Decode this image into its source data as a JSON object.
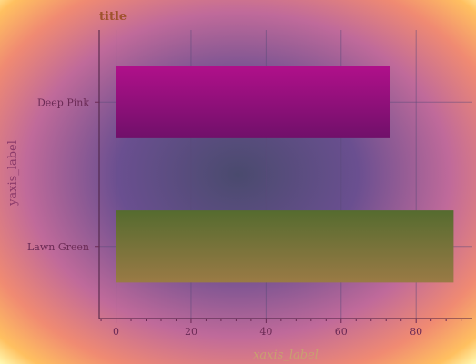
{
  "chart_data": {
    "type": "bar",
    "orientation": "horizontal",
    "title": "title",
    "xlabel": "xaxis_label",
    "ylabel": "yaxis_label",
    "categories": [
      "Lawn Green",
      "Deep Pink"
    ],
    "values": [
      90,
      73
    ],
    "bar_colors": [
      "#7a8a3a",
      "#a0107a"
    ],
    "xlim": [
      -4.5,
      95
    ],
    "xticks": [
      0,
      20,
      40,
      60,
      80
    ],
    "grid": true,
    "colors": {
      "title": "#a0522d",
      "axis_label": "#c8a070",
      "ylabel": "#8b3a6a",
      "tick_label": "#6b2a55",
      "grid": "#5a4a7a"
    }
  }
}
